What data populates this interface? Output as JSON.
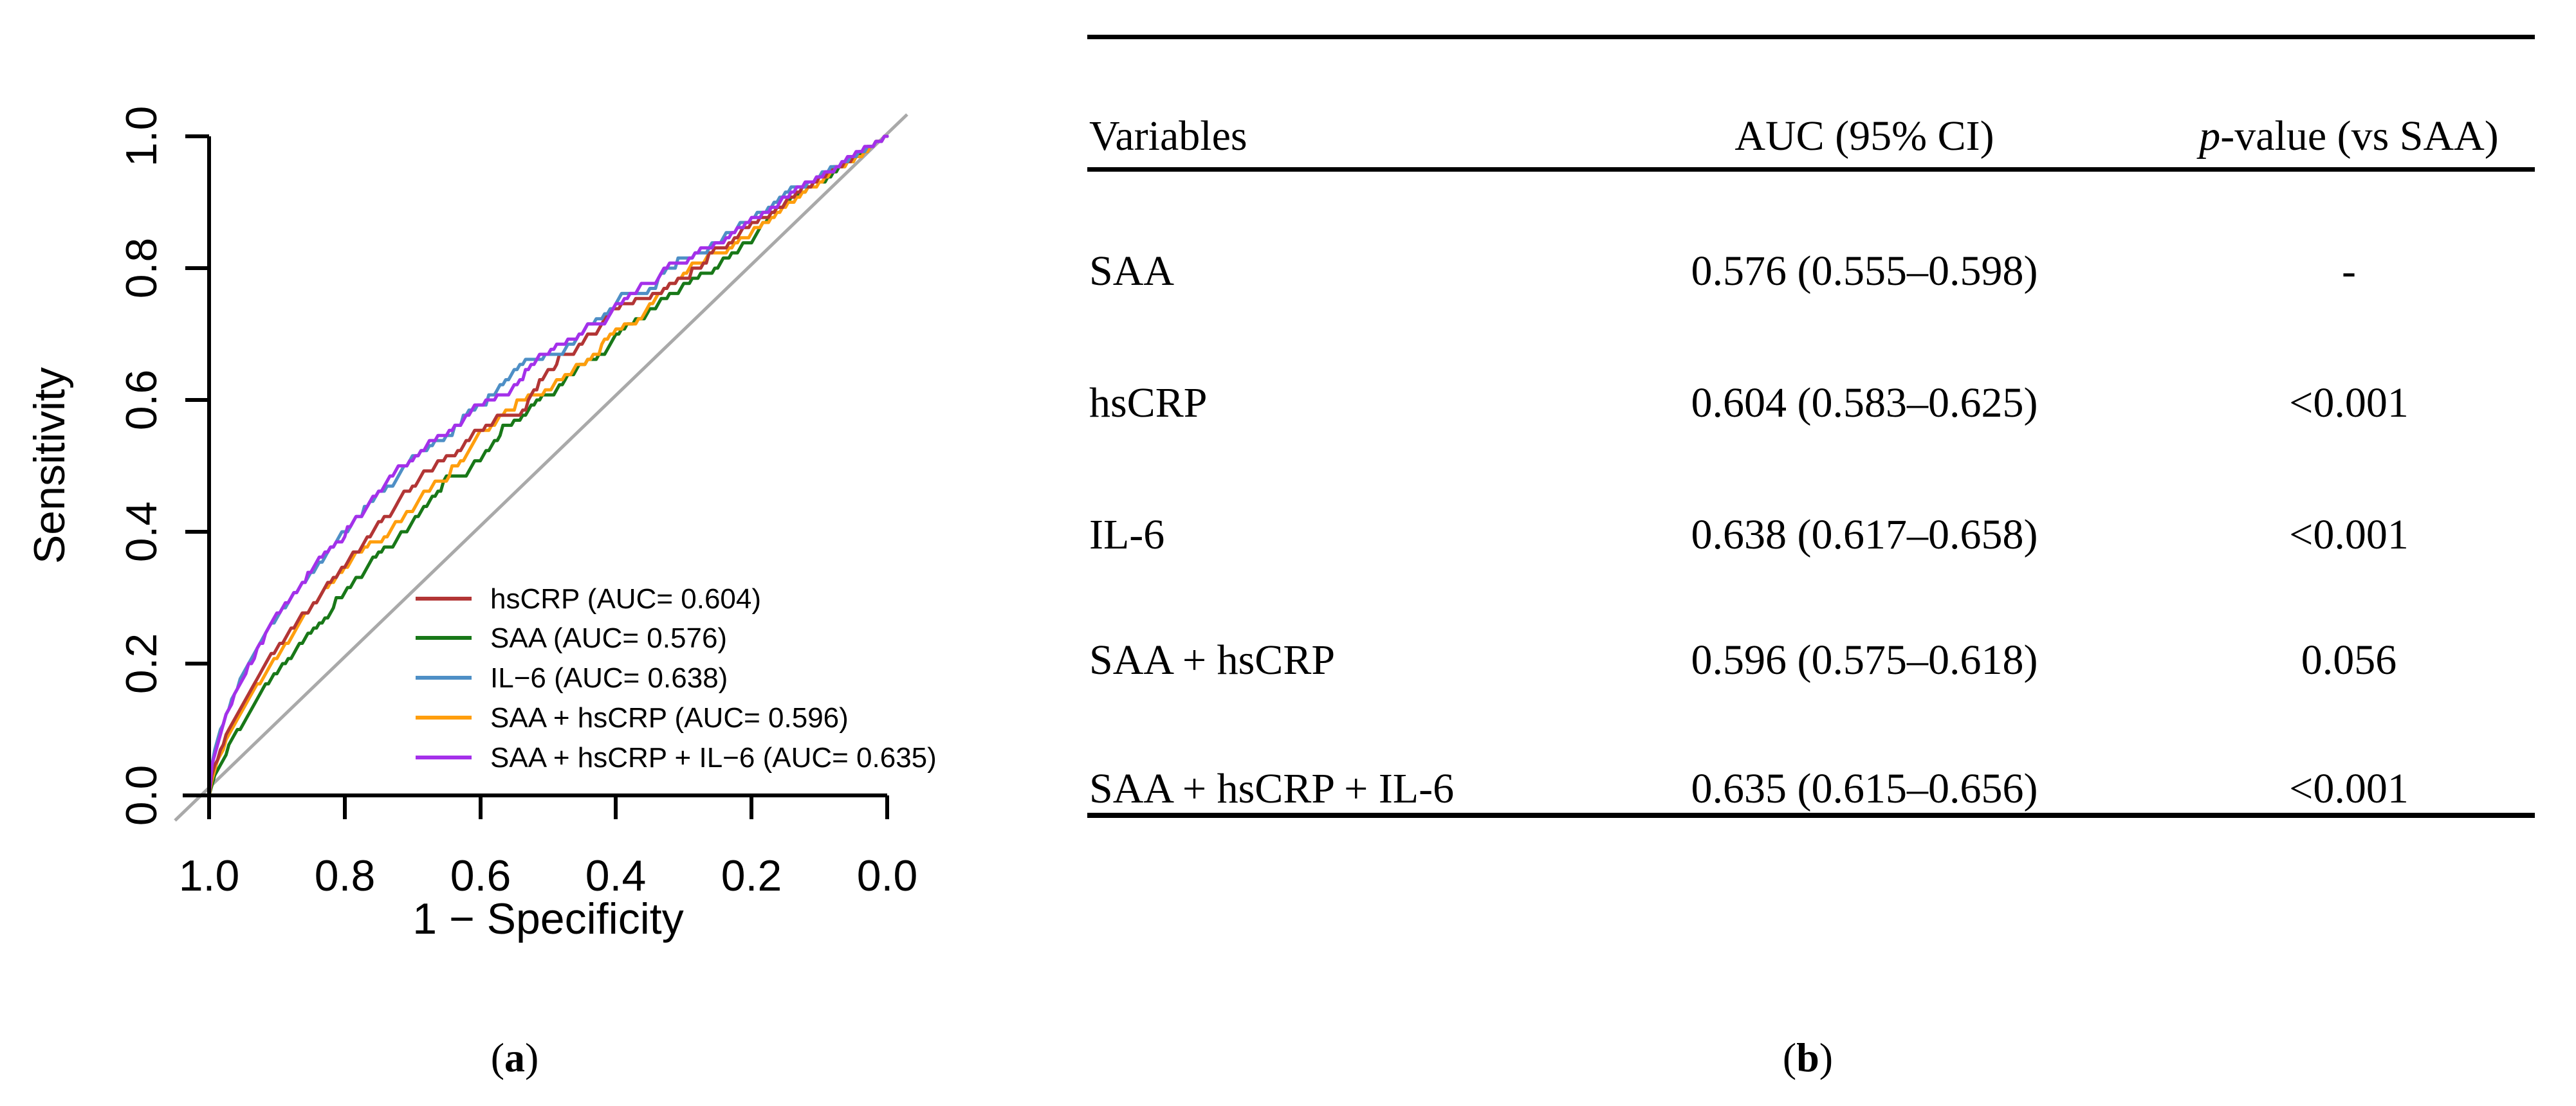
{
  "panel_a": {
    "open": "(",
    "label": "a",
    "close": ")"
  },
  "panel_b": {
    "open": "(",
    "label": "b",
    "close": ")"
  },
  "chart_data": {
    "type": "line",
    "title": "",
    "xlabel": "1 − Specificity",
    "ylabel": "Sensitivity",
    "x_ticks": [
      "1.0",
      "0.8",
      "0.6",
      "0.4",
      "0.2",
      "0.0"
    ],
    "y_ticks": [
      "1.0",
      "0.8",
      "0.6",
      "0.4",
      "0.2",
      "0.0"
    ],
    "axis_note": "x axis runs from 1.0 at left to 0.0 at right; ROC curves rise from bottom-left to top-right above the gray diagonal reference line",
    "xlim": [
      1.0,
      0.0
    ],
    "ylim": [
      0.0,
      1.0
    ],
    "grid": "off",
    "legend_position": "inside lower-right of plot",
    "diagonal_color": "#a9a9a9",
    "series": [
      {
        "name": "hsCRP",
        "auc": 0.604,
        "color": "#b23535",
        "legend_label": "hsCRP (AUC= 0.604)"
      },
      {
        "name": "SAA",
        "auc": 0.576,
        "color": "#187818",
        "legend_label": "SAA (AUC= 0.576)"
      },
      {
        "name": "IL−6",
        "auc": 0.638,
        "color": "#4e8fc6",
        "legend_label": "IL−6 (AUC= 0.638)"
      },
      {
        "name": "SAA + hsCRP",
        "auc": 0.596,
        "color": "#ff9e0d",
        "legend_label": "SAA + hsCRP (AUC= 0.596)"
      },
      {
        "name": "SAA + hsCRP + IL−6",
        "auc": 0.635,
        "color": "#a430ea",
        "legend_label": "SAA + hsCRP + IL−6 (AUC= 0.635)"
      }
    ]
  },
  "table": {
    "col_variables": "Variables",
    "col_auc": "AUC (95% CI)",
    "col_p_italic": "p",
    "col_p_rest": "-value (vs SAA)",
    "rows": [
      {
        "variable": "SAA",
        "auc_ci": "0.576 (0.555–0.598)",
        "p_value": "-"
      },
      {
        "variable": "hsCRP",
        "auc_ci": "0.604 (0.583–0.625)",
        "p_value": "<0.001"
      },
      {
        "variable": "IL-6",
        "auc_ci": "0.638 (0.617–0.658)",
        "p_value": "<0.001"
      },
      {
        "variable": "SAA + hsCRP",
        "auc_ci": "0.596 (0.575–0.618)",
        "p_value": "0.056"
      },
      {
        "variable": "SAA + hsCRP + IL-6",
        "auc_ci": "0.635 (0.615–0.656)",
        "p_value": "<0.001"
      }
    ]
  }
}
